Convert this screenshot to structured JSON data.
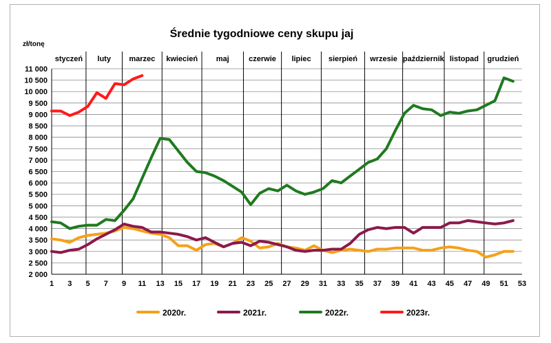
{
  "chart_data": {
    "type": "line",
    "title": "Średnie tygodniowe ceny skupu jaj",
    "ylabel": "zł/tonę",
    "xlabel": "",
    "ylim": [
      2000,
      11000
    ],
    "xlim": [
      1,
      53
    ],
    "grid": "horizontal",
    "legend_position": "bottom",
    "y_ticks": [
      "2 000",
      "2 500",
      "3 000",
      "3 500",
      "4 000",
      "4 500",
      "5 000",
      "5 500",
      "6 000",
      "6 500",
      "7 000",
      "7 500",
      "8 000",
      "8 500",
      "9 000",
      "9 500",
      "10 000",
      "10 500",
      "11 000"
    ],
    "x_ticks": [
      "1",
      "3",
      "5",
      "7",
      "9",
      "11",
      "13",
      "15",
      "17",
      "19",
      "21",
      "23",
      "25",
      "27",
      "29",
      "31",
      "33",
      "35",
      "37",
      "39",
      "41",
      "43",
      "45",
      "47",
      "49",
      "51",
      "53"
    ],
    "months": [
      {
        "label": "styczeń",
        "start": 1,
        "end": 4.8
      },
      {
        "label": "luty",
        "start": 4.8,
        "end": 8.8
      },
      {
        "label": "marzec",
        "start": 8.8,
        "end": 13.2
      },
      {
        "label": "kwiecień",
        "start": 13.2,
        "end": 17.6
      },
      {
        "label": "maj",
        "start": 17.6,
        "end": 22.2
      },
      {
        "label": "czerwie",
        "start": 22.2,
        "end": 26.4
      },
      {
        "label": "lipiec",
        "start": 26.4,
        "end": 30.8
      },
      {
        "label": "sierpień",
        "start": 30.8,
        "end": 35.6
      },
      {
        "label": "wrzesie",
        "start": 35.6,
        "end": 39.8
      },
      {
        "label": "październik",
        "start": 39.8,
        "end": 44.4
      },
      {
        "label": "listopad",
        "start": 44.4,
        "end": 48.8
      },
      {
        "label": "grudzień",
        "start": 48.8,
        "end": 53
      }
    ],
    "series": [
      {
        "name": "2020r.",
        "color": "#f5a01a",
        "x": [
          1,
          2,
          3,
          4,
          5,
          6,
          7,
          8,
          9,
          10,
          11,
          12,
          13,
          14,
          15,
          16,
          17,
          18,
          19,
          20,
          21,
          22,
          23,
          24,
          25,
          26,
          27,
          28,
          29,
          30,
          31,
          32,
          33,
          34,
          35,
          36,
          37,
          38,
          39,
          40,
          41,
          42,
          43,
          44,
          45,
          46,
          47,
          48,
          49,
          50,
          51,
          52
        ],
        "values": [
          3550,
          3500,
          3400,
          3600,
          3700,
          3750,
          3800,
          3900,
          4050,
          4000,
          3900,
          3800,
          3750,
          3600,
          3250,
          3250,
          3050,
          3300,
          3350,
          3200,
          3350,
          3600,
          3450,
          3150,
          3200,
          3350,
          3200,
          3150,
          3050,
          3250,
          3050,
          2950,
          3050,
          3100,
          3050,
          3000,
          3100,
          3100,
          3150,
          3150,
          3150,
          3050,
          3050,
          3150,
          3200,
          3150,
          3050,
          3000,
          2750,
          2850,
          3000,
          3000
        ]
      },
      {
        "name": "2021r.",
        "color": "#8b1a4a",
        "x": [
          1,
          2,
          3,
          4,
          5,
          6,
          7,
          8,
          9,
          10,
          11,
          12,
          13,
          14,
          15,
          16,
          17,
          18,
          19,
          20,
          21,
          22,
          23,
          24,
          25,
          26,
          27,
          28,
          29,
          30,
          31,
          32,
          33,
          34,
          35,
          36,
          37,
          38,
          39,
          40,
          41,
          42,
          43,
          44,
          45,
          46,
          47,
          48,
          49,
          50,
          51,
          52
        ],
        "values": [
          3000,
          2950,
          3050,
          3100,
          3300,
          3550,
          3750,
          3950,
          4200,
          4100,
          4050,
          3850,
          3850,
          3800,
          3750,
          3650,
          3500,
          3600,
          3400,
          3200,
          3350,
          3400,
          3250,
          3450,
          3400,
          3300,
          3200,
          3050,
          3000,
          3050,
          3050,
          3100,
          3100,
          3350,
          3750,
          3950,
          4050,
          4000,
          4050,
          4050,
          3800,
          4050,
          4050,
          4050,
          4250,
          4250,
          4350,
          4300,
          4250,
          4200,
          4250,
          4350
        ]
      },
      {
        "name": "2022r.",
        "color": "#1f7a1f",
        "x": [
          1,
          2,
          3,
          4,
          5,
          6,
          7,
          8,
          9,
          10,
          11,
          12,
          13,
          14,
          15,
          16,
          17,
          18,
          19,
          20,
          21,
          22,
          23,
          24,
          25,
          26,
          27,
          28,
          29,
          30,
          31,
          32,
          33,
          34,
          35,
          36,
          37,
          38,
          39,
          40,
          41,
          42,
          43,
          44,
          45,
          46,
          47,
          48,
          49,
          50,
          51,
          52
        ],
        "values": [
          4300,
          4250,
          4000,
          4100,
          4150,
          4150,
          4400,
          4350,
          4800,
          5300,
          6200,
          7100,
          7950,
          7900,
          7400,
          6900,
          6500,
          6450,
          6300,
          6100,
          5850,
          5600,
          5050,
          5550,
          5750,
          5650,
          5900,
          5650,
          5500,
          5600,
          5750,
          6100,
          6000,
          6300,
          6600,
          6900,
          7050,
          7500,
          8300,
          9050,
          9400,
          9250,
          9200,
          8950,
          9100,
          9050,
          9150,
          9200,
          9400,
          9600,
          10600,
          10450
        ]
      },
      {
        "name": "2023r.",
        "color": "#ff1a1a",
        "x": [
          1,
          2,
          3,
          4,
          5,
          6,
          7,
          8,
          9,
          10,
          11
        ],
        "values": [
          9150,
          9150,
          8950,
          9100,
          9350,
          9950,
          9700,
          10350,
          10300,
          10550,
          10700
        ]
      }
    ]
  }
}
